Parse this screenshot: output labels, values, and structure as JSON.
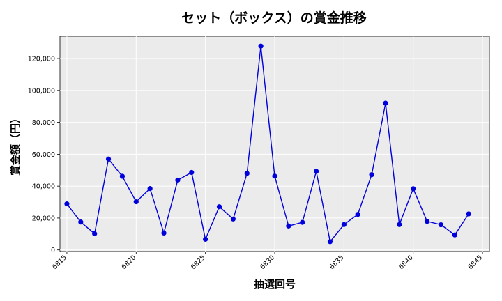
{
  "chart_data": {
    "type": "line",
    "title": "セット（ボックス）の賞金推移",
    "xlabel": "抽選回号",
    "ylabel": "賞金額（円）",
    "xlim": [
      6814.5,
      6845.5
    ],
    "ylim": [
      -1000,
      134000
    ],
    "x_ticks": [
      6815,
      6820,
      6825,
      6830,
      6835,
      6840,
      6845
    ],
    "y_ticks": [
      0,
      20000,
      40000,
      60000,
      80000,
      100000,
      120000
    ],
    "y_tick_labels": [
      "0",
      "20,000",
      "40,000",
      "60,000",
      "80,000",
      "100,000",
      "120,000"
    ],
    "grid": true,
    "series": [
      {
        "color": "#0000dd",
        "x": [
          6815,
          6816,
          6817,
          6818,
          6819,
          6820,
          6821,
          6822,
          6823,
          6824,
          6825,
          6826,
          6827,
          6828,
          6829,
          6830,
          6831,
          6832,
          6833,
          6834,
          6835,
          6836,
          6837,
          6838,
          6839,
          6840,
          6841,
          6842,
          6843,
          6844
        ],
        "values": [
          28900,
          17500,
          10200,
          57000,
          46200,
          30200,
          38500,
          10600,
          43800,
          48600,
          6700,
          27100,
          19400,
          48000,
          127800,
          46300,
          15000,
          17300,
          49300,
          5200,
          15900,
          22300,
          47200,
          92000,
          15900,
          38400,
          17900,
          15800,
          9400,
          22600
        ]
      }
    ]
  }
}
